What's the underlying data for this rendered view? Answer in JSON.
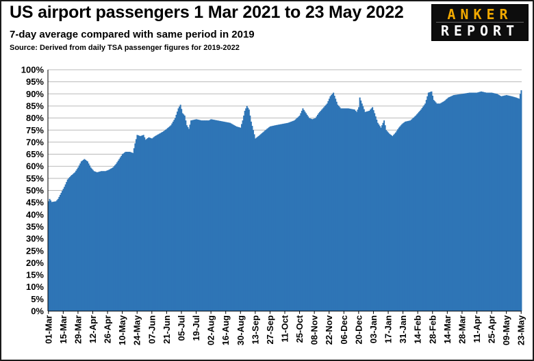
{
  "header": {
    "title": "US airport passengers 1 Mar 2021 to 23 May 2022",
    "subtitle": "7-day average compared with same period in 2019",
    "source": "Source: Derived from daily TSA passenger figures for 2019-2022"
  },
  "logo": {
    "top_text": "ANKER",
    "bottom_text": "REPORT"
  },
  "colors": {
    "bar": "#2e75b6",
    "grid": "#b8b8b8",
    "axis": "#000000"
  },
  "chart_data": {
    "type": "bar",
    "title": "US airport passengers 1 Mar 2021 to 23 May 2022",
    "subtitle": "7-day average compared with same period in 2019",
    "ylim": [
      0,
      100
    ],
    "y_ticks": [
      0,
      5,
      10,
      15,
      20,
      25,
      30,
      35,
      40,
      45,
      50,
      55,
      60,
      65,
      70,
      75,
      80,
      85,
      90,
      95,
      100
    ],
    "y_tick_labels": [
      "0%",
      "5%",
      "10%",
      "15%",
      "20%",
      "25%",
      "30%",
      "35%",
      "40%",
      "45%",
      "50%",
      "55%",
      "60%",
      "65%",
      "70%",
      "75%",
      "80%",
      "85%",
      "90%",
      "95%",
      "100%"
    ],
    "y_unit": "%",
    "grid": true,
    "legend": "none",
    "x_start": "2021-03-01",
    "x_end": "2022-05-23",
    "x_tick_labels": [
      "01-Mar",
      "15-Mar",
      "29-Mar",
      "12-Apr",
      "26-Apr",
      "10-May",
      "24-May",
      "07-Jun",
      "21-Jun",
      "05-Jul",
      "19-Jul",
      "02-Aug",
      "16-Aug",
      "30-Aug",
      "13-Sep",
      "27-Sep",
      "11-Oct",
      "25-Oct",
      "08-Nov",
      "22-Nov",
      "06-Dec",
      "20-Dec",
      "03-Jan",
      "17-Jan",
      "31-Jan",
      "14-Feb",
      "28-Feb",
      "14-Mar",
      "28-Mar",
      "11-Apr",
      "25-Apr",
      "09-May",
      "23-May"
    ],
    "series": [
      {
        "points": [
          [
            "2021-03-01",
            45.5
          ],
          [
            "2021-03-02",
            46.5
          ],
          [
            "2021-03-04",
            45.2
          ],
          [
            "2021-03-08",
            45.5
          ],
          [
            "2021-03-10",
            46.5
          ],
          [
            "2021-03-13",
            49
          ],
          [
            "2021-03-16",
            51.5
          ],
          [
            "2021-03-19",
            54.5
          ],
          [
            "2021-03-22",
            56
          ],
          [
            "2021-03-26",
            57.5
          ],
          [
            "2021-03-29",
            59.5
          ],
          [
            "2021-04-01",
            62
          ],
          [
            "2021-04-04",
            63
          ],
          [
            "2021-04-07",
            62
          ],
          [
            "2021-04-10",
            59.5
          ],
          [
            "2021-04-13",
            58
          ],
          [
            "2021-04-16",
            57.5
          ],
          [
            "2021-04-20",
            58
          ],
          [
            "2021-04-24",
            58
          ],
          [
            "2021-04-27",
            58.5
          ],
          [
            "2021-05-01",
            59.5
          ],
          [
            "2021-05-04",
            61
          ],
          [
            "2021-05-07",
            63
          ],
          [
            "2021-05-10",
            65
          ],
          [
            "2021-05-13",
            66
          ],
          [
            "2021-05-17",
            66
          ],
          [
            "2021-05-20",
            65.5
          ],
          [
            "2021-05-22",
            69.5
          ],
          [
            "2021-05-24",
            73
          ],
          [
            "2021-05-27",
            72.5
          ],
          [
            "2021-05-30",
            73
          ],
          [
            "2021-06-01",
            71
          ],
          [
            "2021-06-04",
            72
          ],
          [
            "2021-06-07",
            71.5
          ],
          [
            "2021-06-10",
            72.5
          ],
          [
            "2021-06-14",
            73.5
          ],
          [
            "2021-06-18",
            74.5
          ],
          [
            "2021-06-21",
            75.5
          ],
          [
            "2021-06-25",
            77
          ],
          [
            "2021-06-29",
            80
          ],
          [
            "2021-07-02",
            84
          ],
          [
            "2021-07-04",
            85.5
          ],
          [
            "2021-07-06",
            82
          ],
          [
            "2021-07-08",
            81
          ],
          [
            "2021-07-10",
            77
          ],
          [
            "2021-07-12",
            75.5
          ],
          [
            "2021-07-14",
            79
          ],
          [
            "2021-07-19",
            79.5
          ],
          [
            "2021-07-24",
            79
          ],
          [
            "2021-07-31",
            79
          ],
          [
            "2021-08-02",
            79.5
          ],
          [
            "2021-08-08",
            79
          ],
          [
            "2021-08-14",
            78.5
          ],
          [
            "2021-08-20",
            78
          ],
          [
            "2021-08-26",
            76.5
          ],
          [
            "2021-08-30",
            76
          ],
          [
            "2021-09-01",
            79
          ],
          [
            "2021-09-03",
            83
          ],
          [
            "2021-09-05",
            85
          ],
          [
            "2021-09-07",
            83.5
          ],
          [
            "2021-09-09",
            78.5
          ],
          [
            "2021-09-11",
            75
          ],
          [
            "2021-09-13",
            71.5
          ],
          [
            "2021-09-16",
            72.5
          ],
          [
            "2021-09-20",
            74
          ],
          [
            "2021-09-24",
            75.5
          ],
          [
            "2021-09-27",
            76.5
          ],
          [
            "2021-10-02",
            77
          ],
          [
            "2021-10-08",
            77.5
          ],
          [
            "2021-10-14",
            78
          ],
          [
            "2021-10-20",
            79
          ],
          [
            "2021-10-25",
            81
          ],
          [
            "2021-10-28",
            84
          ],
          [
            "2021-10-31",
            82
          ],
          [
            "2021-11-03",
            80
          ],
          [
            "2021-11-06",
            79.5
          ],
          [
            "2021-11-09",
            80
          ],
          [
            "2021-11-12",
            82
          ],
          [
            "2021-11-16",
            84
          ],
          [
            "2021-11-20",
            86
          ],
          [
            "2021-11-23",
            89
          ],
          [
            "2021-11-26",
            90.5
          ],
          [
            "2021-11-28",
            88
          ],
          [
            "2021-11-30",
            85.5
          ],
          [
            "2021-12-03",
            84
          ],
          [
            "2021-12-10",
            84
          ],
          [
            "2021-12-16",
            83.5
          ],
          [
            "2021-12-18",
            82.5
          ],
          [
            "2021-12-20",
            84.5
          ],
          [
            "2021-12-21",
            88.5
          ],
          [
            "2021-12-23",
            86
          ],
          [
            "2021-12-26",
            82.5
          ],
          [
            "2021-12-30",
            83
          ],
          [
            "2022-01-02",
            84.5
          ],
          [
            "2022-01-04",
            82
          ],
          [
            "2022-01-07",
            78
          ],
          [
            "2022-01-10",
            76
          ],
          [
            "2022-01-13",
            79
          ],
          [
            "2022-01-15",
            75
          ],
          [
            "2022-01-18",
            73.5
          ],
          [
            "2022-01-21",
            72.5
          ],
          [
            "2022-01-24",
            74
          ],
          [
            "2022-01-27",
            76
          ],
          [
            "2022-01-30",
            77.5
          ],
          [
            "2022-02-02",
            78.5
          ],
          [
            "2022-02-07",
            79
          ],
          [
            "2022-02-12",
            81
          ],
          [
            "2022-02-17",
            83.5
          ],
          [
            "2022-02-21",
            86
          ],
          [
            "2022-02-24",
            90.5
          ],
          [
            "2022-02-27",
            91
          ],
          [
            "2022-03-01",
            87.5
          ],
          [
            "2022-03-04",
            86
          ],
          [
            "2022-03-07",
            86
          ],
          [
            "2022-03-11",
            87
          ],
          [
            "2022-03-15",
            88.5
          ],
          [
            "2022-03-20",
            89.5
          ],
          [
            "2022-03-28",
            90
          ],
          [
            "2022-04-04",
            90.5
          ],
          [
            "2022-04-11",
            90.5
          ],
          [
            "2022-04-15",
            91
          ],
          [
            "2022-04-20",
            90.5
          ],
          [
            "2022-04-25",
            90.5
          ],
          [
            "2022-04-30",
            90
          ],
          [
            "2022-05-04",
            89
          ],
          [
            "2022-05-09",
            89.5
          ],
          [
            "2022-05-14",
            89
          ],
          [
            "2022-05-18",
            88.5
          ],
          [
            "2022-05-21",
            88
          ],
          [
            "2022-05-22",
            90
          ],
          [
            "2022-05-23",
            91.5
          ]
        ]
      }
    ]
  }
}
